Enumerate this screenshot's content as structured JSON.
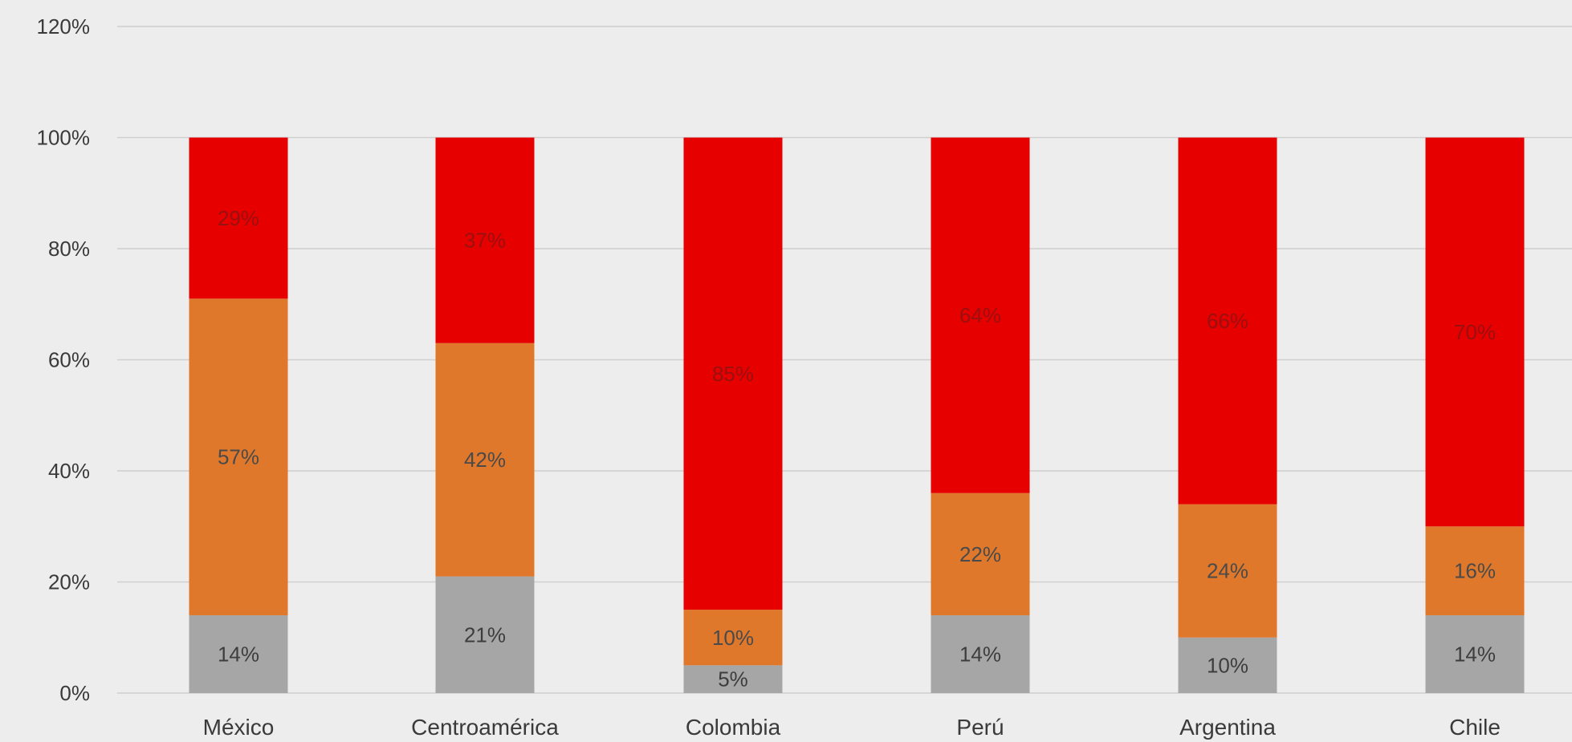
{
  "chart_data": {
    "type": "bar",
    "stacked": true,
    "categories": [
      "México",
      "Centroamérica",
      "Colombia",
      "Perú",
      "Argentina",
      "Chile"
    ],
    "series": [
      {
        "values": [
          14,
          21,
          5,
          14,
          10,
          14
        ],
        "color": "#a6a6a6",
        "label_color": "#3d3d3d"
      },
      {
        "values": [
          57,
          42,
          10,
          22,
          24,
          16
        ],
        "color": "#e0782b",
        "label_color": "#4a4a4a"
      },
      {
        "values": [
          29,
          37,
          85,
          64,
          66,
          70
        ],
        "color": "#e60000",
        "label_color": "#9a1010"
      }
    ],
    "data_labels": [
      [
        "14%",
        "21%",
        "5%",
        "14%",
        "10%",
        "14%"
      ],
      [
        "57%",
        "42%",
        "10%",
        "22%",
        "24%",
        "16%"
      ],
      [
        "29%",
        "37%",
        "85%",
        "64%",
        "66%",
        "70%"
      ]
    ],
    "yticks": [
      "0%",
      "20%",
      "40%",
      "60%",
      "80%",
      "100%",
      "120%"
    ],
    "ylim": [
      0,
      120
    ],
    "grid": true,
    "colors": {
      "background": "#ededed",
      "grid": "#cfcfcf",
      "text": "#3a3a3a"
    }
  }
}
